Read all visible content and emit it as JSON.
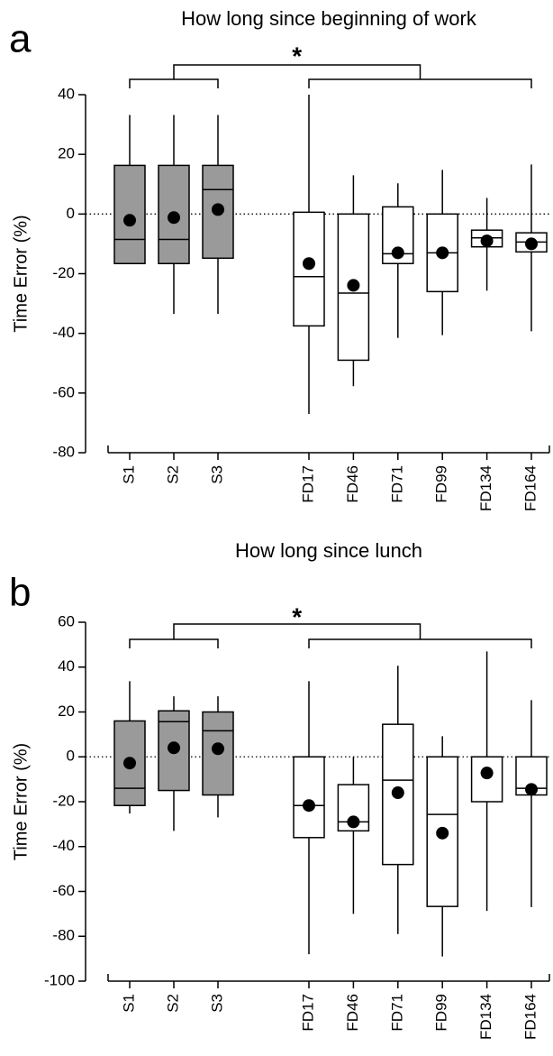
{
  "chart_data": [
    {
      "type": "box",
      "panel": "a",
      "title": "How long since beginning of work",
      "y_label": "Time Error (%)",
      "ylim": [
        -80,
        40
      ],
      "yticks": [
        40,
        20,
        0,
        -20,
        -40,
        -60,
        -80
      ],
      "significance": "*",
      "series": [
        {
          "color": "#9a9a9a",
          "categories": [
            "S1",
            "S2",
            "S3"
          ],
          "boxes": [
            {
              "whislo": -16.6,
              "q1": -16.6,
              "med": -8.5,
              "q3": 16.3,
              "whishi": 33.2,
              "mean": -2.1
            },
            {
              "whislo": -33.5,
              "q1": -16.6,
              "med": -8.5,
              "q3": 16.3,
              "whishi": 33.2,
              "mean": -1.2
            },
            {
              "whislo": -33.5,
              "q1": -14.8,
              "med": 8.2,
              "q3": 16.3,
              "whishi": 33.2,
              "mean": 1.5
            }
          ]
        },
        {
          "color": "#ffffff",
          "categories": [
            "FD17",
            "FD46",
            "FD71",
            "FD99",
            "FD134",
            "FD164"
          ],
          "boxes": [
            {
              "whislo": -67,
              "q1": -37.5,
              "med": -21,
              "q3": 0.6,
              "whishi": 40,
              "mean": -16.6
            },
            {
              "whislo": -57.7,
              "q1": -49,
              "med": -26.5,
              "q3": 0,
              "whishi": 13,
              "mean": -23.9
            },
            {
              "whislo": -41.5,
              "q1": -16.6,
              "med": -13.3,
              "q3": 2.4,
              "whishi": 10.3,
              "mean": -13
            },
            {
              "whislo": -40.6,
              "q1": -26,
              "med": -13,
              "q3": 0,
              "whishi": 14.8,
              "mean": -13
            },
            {
              "whislo": -25.7,
              "q1": -11,
              "med": -8,
              "q3": -5.4,
              "whishi": 5.4,
              "mean": -9
            },
            {
              "whislo": -39.3,
              "q1": -12.7,
              "med": -9.4,
              "q3": -6.3,
              "whishi": 16.6,
              "mean": -10
            }
          ]
        }
      ]
    },
    {
      "type": "box",
      "panel": "b",
      "title": "How long since lunch",
      "y_label": "Time Error (%)",
      "ylim": [
        -100,
        60
      ],
      "yticks": [
        60,
        40,
        20,
        0,
        -20,
        -40,
        -60,
        -80,
        -100
      ],
      "significance": "*",
      "series": [
        {
          "color": "#9a9a9a",
          "categories": [
            "S1",
            "S2",
            "S3"
          ],
          "boxes": [
            {
              "whislo": -25.3,
              "q1": -21.7,
              "med": -14,
              "q3": 16,
              "whishi": 33.7,
              "mean": -2.8
            },
            {
              "whislo": -33,
              "q1": -15,
              "med": 15.7,
              "q3": 20.5,
              "whishi": 27,
              "mean": 4
            },
            {
              "whislo": -27,
              "q1": -17,
              "med": 11.6,
              "q3": 20,
              "whishi": 27,
              "mean": 3.6
            }
          ]
        },
        {
          "color": "#ffffff",
          "categories": [
            "FD17",
            "FD46",
            "FD71",
            "FD99",
            "FD134",
            "FD164"
          ],
          "boxes": [
            {
              "whislo": -88,
              "q1": -36,
              "med": -21.7,
              "q3": 0,
              "whishi": 33.7,
              "mean": -21.7
            },
            {
              "whislo": -70,
              "q1": -33,
              "med": -29,
              "q3": -12.4,
              "whishi": 0,
              "mean": -29
            },
            {
              "whislo": -79,
              "q1": -48,
              "med": -10.4,
              "q3": 14.5,
              "whishi": 40.6,
              "mean": -16
            },
            {
              "whislo": -89,
              "q1": -66.7,
              "med": -25.7,
              "q3": 0,
              "whishi": 9.2,
              "mean": -34
            },
            {
              "whislo": -68.7,
              "q1": -20,
              "med": 0,
              "q3": 0,
              "whishi": 47,
              "mean": -7.2
            },
            {
              "whislo": -67,
              "q1": -17,
              "med": -14,
              "q3": 0,
              "whishi": 25.3,
              "mean": -14.5
            }
          ]
        }
      ]
    }
  ]
}
